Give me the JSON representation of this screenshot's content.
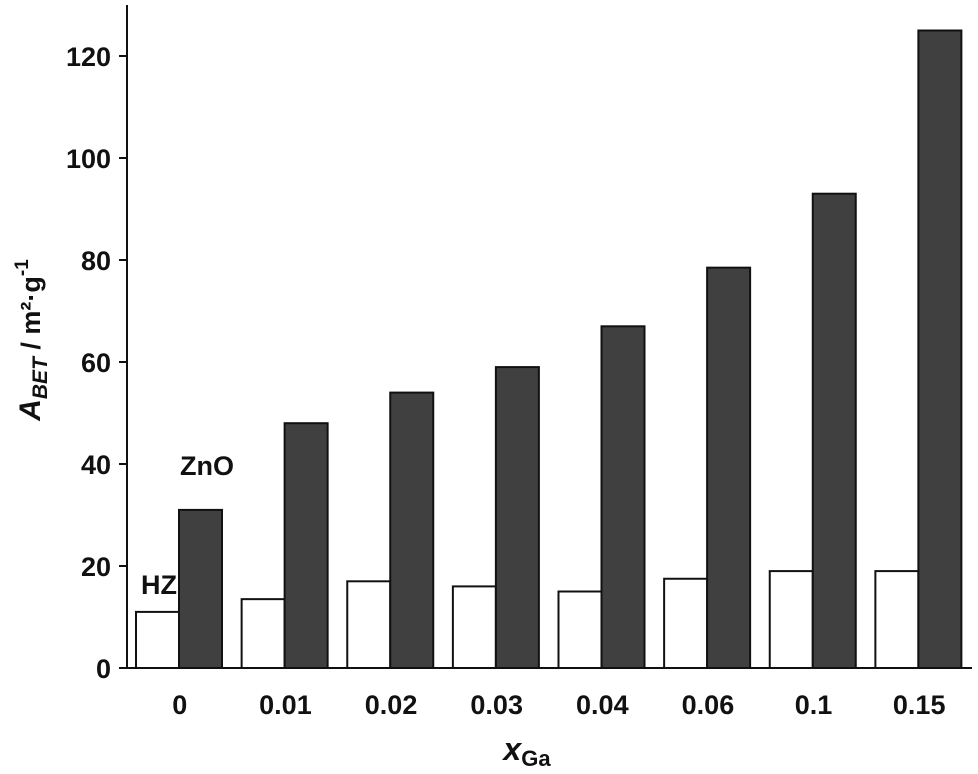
{
  "chart_data": {
    "type": "bar",
    "categories": [
      "0",
      "0.01",
      "0.02",
      "0.03",
      "0.04",
      "0.06",
      "0.1",
      "0.15"
    ],
    "series": [
      {
        "name": "HZ",
        "color": "#ffffff",
        "values": [
          11,
          13.5,
          17,
          16,
          15,
          17.5,
          19,
          19
        ]
      },
      {
        "name": "ZnO",
        "color": "#404040",
        "values": [
          31,
          48,
          54,
          59,
          67,
          78.5,
          93,
          125
        ]
      }
    ],
    "y_ticks": [
      "0",
      "20",
      "40",
      "60",
      "80",
      "100",
      "120"
    ],
    "ylim": [
      0,
      130
    ],
    "xlabel": {
      "main": "x",
      "sub": "Ga"
    },
    "ylabel": {
      "main": "A",
      "sub": "BET",
      "rest": " / m²·g",
      "sup": "-1"
    },
    "grid": false,
    "legend": "inline labels"
  }
}
